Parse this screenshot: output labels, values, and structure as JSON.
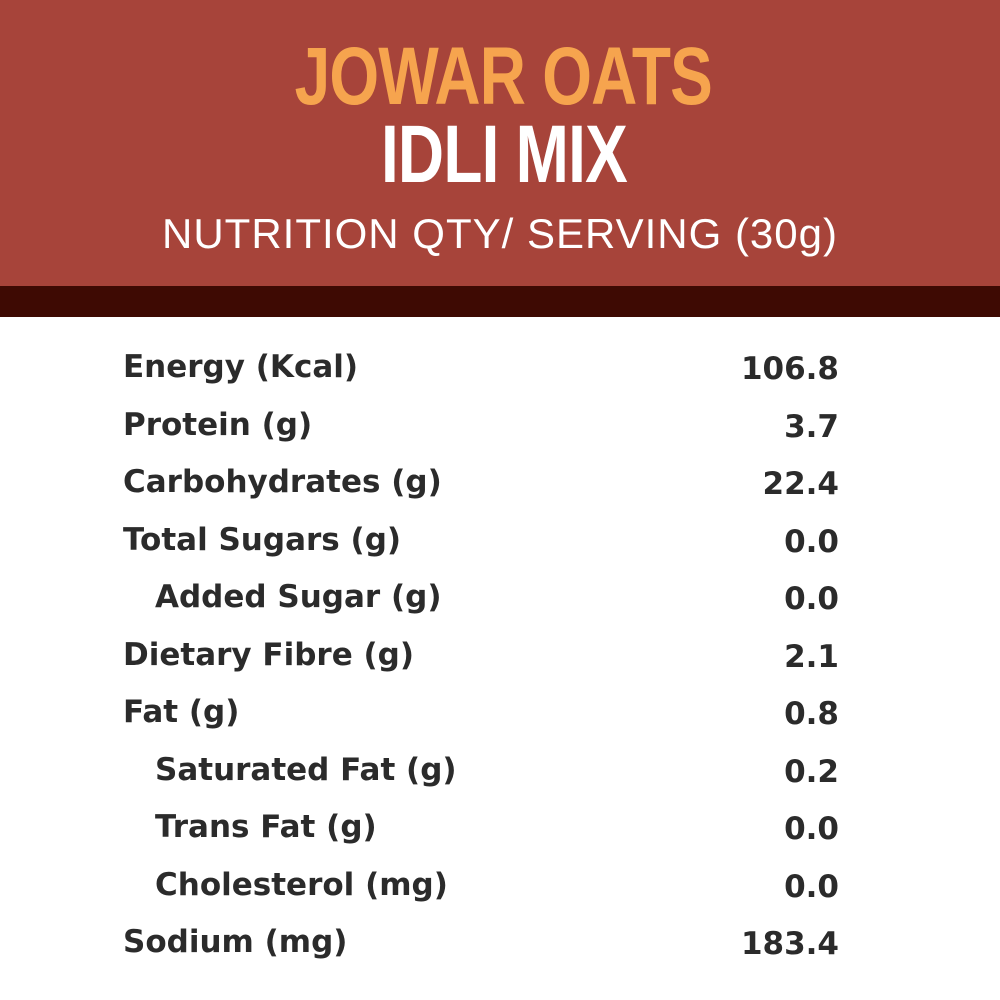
{
  "header": {
    "title_line1": "JOWAR OATS",
    "title_line2": "IDLI MIX",
    "subtitle": "NUTRITION QTY/ SERVING (30g)"
  },
  "colors": {
    "header_bg": "#a7443a",
    "header_band": "#3e0a03",
    "title_accent": "#f6a44e",
    "text_dark": "#2b2b2b"
  },
  "nutrition": {
    "rows": [
      {
        "label": "Energy (Kcal)",
        "value": "106.8",
        "indent": false
      },
      {
        "label": "Protein (g)",
        "value": "3.7",
        "indent": false
      },
      {
        "label": "Carbohydrates (g)",
        "value": "22.4",
        "indent": false
      },
      {
        "label": "Total Sugars (g)",
        "value": "0.0",
        "indent": false
      },
      {
        "label": "Added Sugar (g)",
        "value": "0.0",
        "indent": true
      },
      {
        "label": "Dietary Fibre (g)",
        "value": "2.1",
        "indent": false
      },
      {
        "label": "Fat (g)",
        "value": "0.8",
        "indent": false
      },
      {
        "label": "Saturated Fat (g)",
        "value": "0.2",
        "indent": true
      },
      {
        "label": "Trans Fat (g)",
        "value": "0.0",
        "indent": true
      },
      {
        "label": "Cholesterol (mg)",
        "value": "0.0",
        "indent": true
      },
      {
        "label": "Sodium (mg)",
        "value": "183.4",
        "indent": false
      }
    ]
  }
}
